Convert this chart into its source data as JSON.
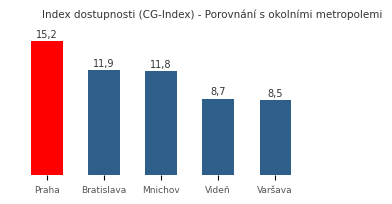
{
  "title": "Index dostupnosti (CG-Index) - Porovnání s okol ními metropolemi",
  "title_display": "Index dostupnosti (CG-Index) - Porovnání s okolími metropolemi",
  "categories": [
    "Praha",
    "Bratislava",
    "Mnichov",
    "Videň",
    "Varšava"
  ],
  "values": [
    15.2,
    11.9,
    11.8,
    8.7,
    8.5
  ],
  "bar_colors": [
    "#ff0000",
    "#2e5f8a",
    "#2e5f8a",
    "#2e5f8a",
    "#2e5f8a"
  ],
  "value_labels": [
    "15,2",
    "11,9",
    "11,8",
    "8,7",
    "8,5"
  ],
  "ylim": [
    0,
    17
  ],
  "title_fontsize": 7.5,
  "label_fontsize": 7,
  "tick_fontsize": 6.5,
  "background_color": "#ffffff",
  "bar_width": 0.55
}
